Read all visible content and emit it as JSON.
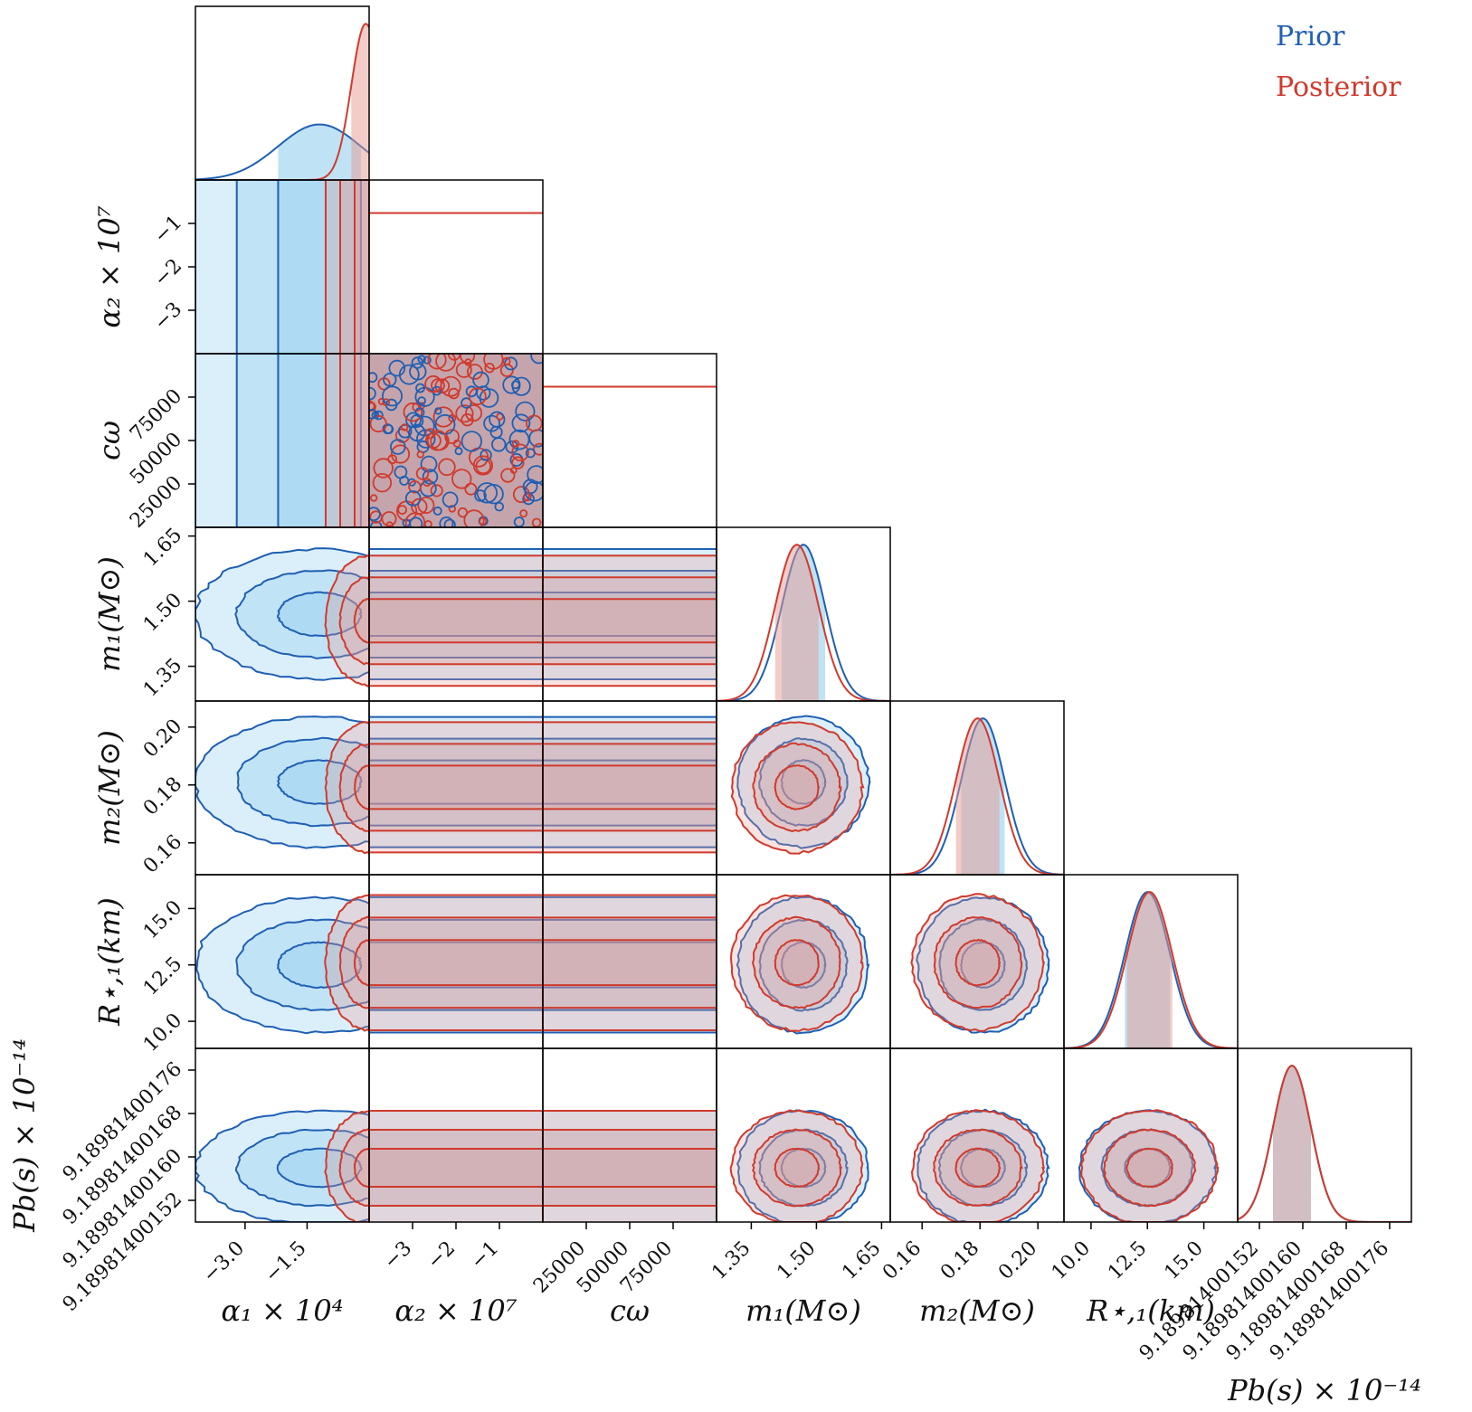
{
  "colors": {
    "prior": "#1f5fb4",
    "prior_fill": "#7fc5ec",
    "posterior": "#d03a2c",
    "posterior_fill": "#e89a92",
    "frame": "#000000"
  },
  "legend": {
    "prior_label": "Prior",
    "posterior_label": "Posterior",
    "placement": "top-right"
  },
  "chart_data": {
    "type": "corner",
    "parameters": [
      {
        "name": "alpha1",
        "label": "α₁ × 10⁴",
        "range": [
          -4.2,
          0.0
        ],
        "ticks": [
          -3.0,
          -1.5
        ],
        "tick_labels": [
          "−3.0",
          "−1.5"
        ],
        "prior": {
          "mean": -1.2,
          "sd": 1.0,
          "shape": "gaussian"
        },
        "posterior": {
          "mean": -0.08,
          "sd": 0.35,
          "shape": "half-gaussian"
        }
      },
      {
        "name": "alpha2",
        "label": "α₂ × 10⁷",
        "range": [
          -4.0,
          0.0
        ],
        "ticks": [
          -3,
          -2,
          -1
        ],
        "tick_labels": [
          "−3",
          "−2",
          "−1"
        ],
        "prior": {
          "shape": "uniform"
        },
        "posterior": {
          "shape": "uniform"
        }
      },
      {
        "name": "c_omega",
        "label": "cω",
        "range": [
          0,
          100000
        ],
        "ticks": [
          25000,
          50000,
          75000
        ],
        "tick_labels": [
          "25000",
          "50000",
          "75000"
        ],
        "prior": {
          "shape": "uniform"
        },
        "posterior": {
          "shape": "uniform"
        }
      },
      {
        "name": "m1",
        "label": "m₁(M⊙)",
        "range": [
          1.27,
          1.67
        ],
        "ticks": [
          1.35,
          1.5,
          1.65
        ],
        "tick_labels": [
          "1.35",
          "1.50",
          "1.65"
        ],
        "prior": {
          "mean": 1.47,
          "sd": 0.05,
          "shape": "gaussian"
        },
        "posterior": {
          "mean": 1.455,
          "sd": 0.05,
          "shape": "gaussian"
        }
      },
      {
        "name": "m2",
        "label": "m₂(M⊙)",
        "range": [
          0.149,
          0.209
        ],
        "ticks": [
          0.16,
          0.18,
          0.2
        ],
        "tick_labels": [
          "0.16",
          "0.18",
          "0.20"
        ],
        "prior": {
          "mean": 0.181,
          "sd": 0.0075,
          "shape": "gaussian"
        },
        "posterior": {
          "mean": 0.1792,
          "sd": 0.0075,
          "shape": "gaussian"
        }
      },
      {
        "name": "R",
        "label": "R⋆,₁(km)",
        "range": [
          8.8,
          16.5
        ],
        "ticks": [
          10.0,
          12.5,
          15.0
        ],
        "tick_labels": [
          "10.0",
          "12.5",
          "15.0"
        ],
        "prior": {
          "mean": 12.5,
          "sd": 1.0,
          "shape": "gaussian"
        },
        "posterior": {
          "mean": 12.6,
          "sd": 1.0,
          "shape": "gaussian"
        }
      },
      {
        "name": "Pb",
        "label": "Pb(s) × 10⁻¹⁴",
        "range": [
          9.18981400148,
          9.1898140018
        ],
        "ticks": [
          9.18981400152,
          9.1898140016,
          9.18981400168,
          9.18981400176
        ],
        "tick_labels": [
          "9.18981400152",
          "9.18981400160",
          "9.18981400168",
          "9.18981400176"
        ],
        "prior": {
          "mean": 9.18981400158,
          "sd": 3.5e-11,
          "shape": "gaussian"
        },
        "posterior": {
          "mean": 9.18981400158,
          "sd": 3.5e-11,
          "shape": "gaussian"
        }
      }
    ],
    "contour_levels_sigma": [
      1,
      2,
      3
    ]
  },
  "axis_labels": {
    "x": [
      "α₁ × 10⁴",
      "α₂ × 10⁷",
      "cω",
      "m₁(M⊙)",
      "m₂(M⊙)",
      "R⋆,₁(km)",
      "Pb(s) × 10⁻¹⁴"
    ],
    "y": [
      "α₂ × 10⁷",
      "cω",
      "m₁(M⊙)",
      "m₂(M⊙)",
      "R⋆,₁(km)",
      "Pb(s) × 10⁻¹⁴"
    ]
  }
}
